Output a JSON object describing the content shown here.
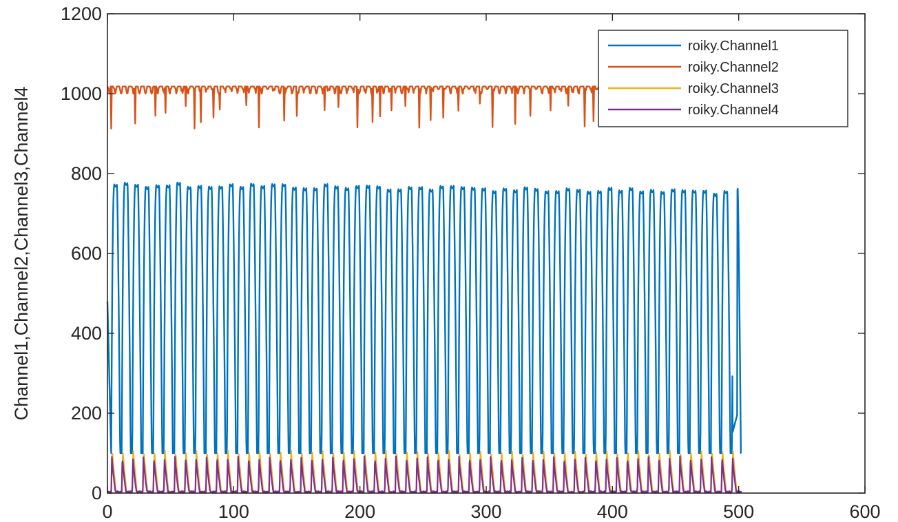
{
  "chart_data": {
    "type": "line",
    "title": "",
    "xlabel": "",
    "ylabel": "Channel1,Channel2,Channel3,Channel4",
    "xlim": [
      0,
      600
    ],
    "ylim": [
      0,
      1200
    ],
    "x_ticks": [
      "0",
      "100",
      "200",
      "300",
      "400",
      "500",
      "600"
    ],
    "y_ticks": [
      "0",
      "200",
      "400",
      "600",
      "800",
      "1000",
      "1200"
    ],
    "grid": false,
    "box": true,
    "legend_position": "top-right",
    "x_range_of_data": [
      0,
      502
    ],
    "series": [
      {
        "name": "roiky.Channel1",
        "color": "#0072BD",
        "pattern": "periodic pulses",
        "cycles": 60,
        "min": 95,
        "max": 790
      },
      {
        "name": "roiky.Channel2",
        "color": "#D95319",
        "pattern": "near-constant with downward spikes",
        "baseline": 1020,
        "spike_min": 910,
        "x_end": 390
      },
      {
        "name": "roiky.Channel3",
        "color": "#EDB120",
        "pattern": "periodic pulses",
        "cycles": 60,
        "min": 0,
        "max": 105
      },
      {
        "name": "roiky.Channel4",
        "color": "#7E2F8E",
        "pattern": "periodic pulses",
        "cycles": 60,
        "min": 0,
        "max": 90
      }
    ]
  }
}
